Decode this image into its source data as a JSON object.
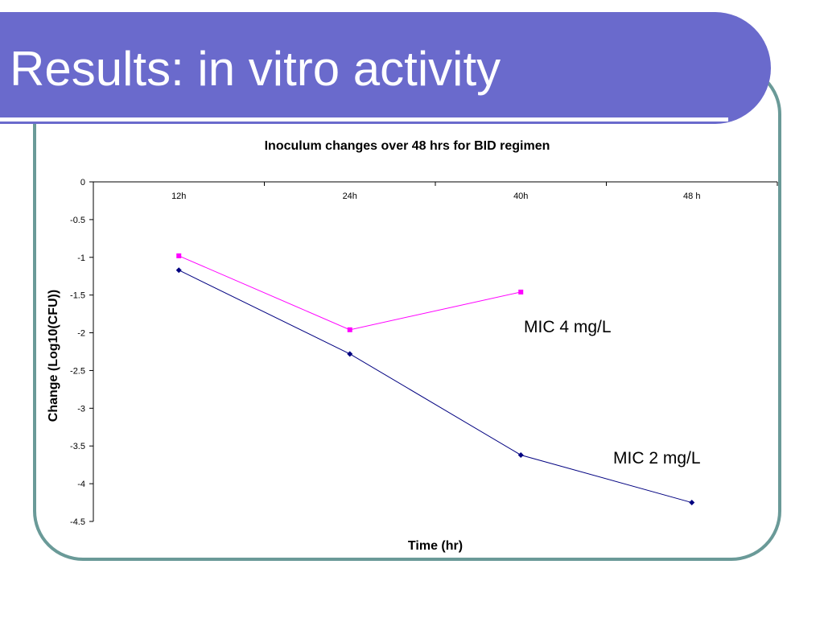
{
  "slide": {
    "title": "Results: in vitro activity"
  },
  "colors": {
    "banner": "#6a6acc",
    "frame": "#6a9a98",
    "series_mic4": "#ff00ff",
    "series_mic2": "#000080"
  },
  "chart_data": {
    "type": "line",
    "title": "Inoculum changes over 48 hrs for BID regimen",
    "xlabel": "Time (hr)",
    "ylabel": "Change (Log10(CFU))",
    "categories": [
      "12h",
      "24h",
      "40h",
      "48 h"
    ],
    "ylim": [
      -4.5,
      0
    ],
    "yticks": [
      "0",
      "-0.5",
      "-1",
      "-1.5",
      "-2",
      "-2.5",
      "-3",
      "-3.5",
      "-4",
      "-4.5"
    ],
    "ytick_values": [
      0,
      -0.5,
      -1,
      -1.5,
      -2,
      -2.5,
      -3,
      -3.5,
      -4,
      -4.5
    ],
    "grid": false,
    "series": [
      {
        "name": "MIC 4 mg/L",
        "marker": "square",
        "values": [
          -0.98,
          -1.96,
          -1.46,
          null
        ]
      },
      {
        "name": "MIC 2 mg/L",
        "marker": "diamond",
        "values": [
          -1.17,
          -2.28,
          -3.62,
          -4.25
        ]
      }
    ],
    "annotations": [
      "MIC 4 mg/L",
      "MIC 2 mg/L"
    ]
  }
}
